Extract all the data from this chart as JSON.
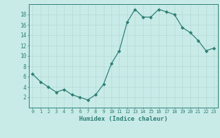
{
  "x": [
    0,
    1,
    2,
    3,
    4,
    5,
    6,
    7,
    8,
    9,
    10,
    11,
    12,
    13,
    14,
    15,
    16,
    17,
    18,
    19,
    20,
    21,
    22,
    23
  ],
  "y": [
    6.5,
    5.0,
    4.0,
    3.0,
    3.5,
    2.5,
    2.0,
    1.5,
    2.5,
    4.5,
    8.5,
    11.0,
    16.5,
    19.0,
    17.5,
    17.5,
    19.0,
    18.5,
    18.0,
    15.5,
    14.5,
    13.0,
    11.0,
    11.5
  ],
  "xlabel": "Humidex (Indice chaleur)",
  "bg_color": "#c8ebe8",
  "line_color": "#2d7f74",
  "marker_color": "#2d7f74",
  "grid_color": "#b5d9d5",
  "tick_color": "#2d7f74",
  "ylim": [
    0,
    20
  ],
  "yticks": [
    2,
    4,
    6,
    8,
    10,
    12,
    14,
    16,
    18
  ],
  "xticks": [
    0,
    1,
    2,
    3,
    4,
    5,
    6,
    7,
    8,
    9,
    10,
    11,
    12,
    13,
    14,
    15,
    16,
    17,
    18,
    19,
    20,
    21,
    22,
    23
  ],
  "xlim": [
    -0.5,
    23.5
  ]
}
